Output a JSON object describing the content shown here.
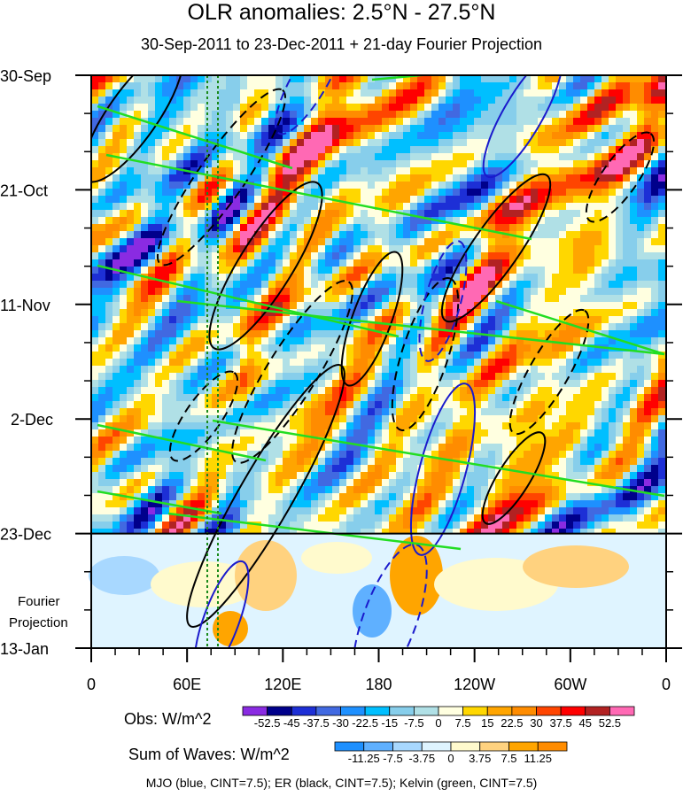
{
  "chart_data": {
    "type": "heatmap",
    "title": "OLR anomalies: 2.5°N - 27.5°N",
    "subtitle": "30-Sep-2011 to 23-Dec-2011 + 21-day Fourier Projection",
    "x_ticks": [
      "0",
      "60E",
      "120E",
      "180",
      "120W",
      "60W",
      "0"
    ],
    "x_tick_values": [
      0,
      60,
      120,
      180,
      240,
      300,
      360
    ],
    "y_ticks": [
      "30-Sep",
      "21-Oct",
      "11-Nov",
      "2-Dec",
      "23-Dec",
      "13-Jan"
    ],
    "y_tick_days": [
      0,
      21,
      42,
      63,
      84,
      105
    ],
    "projection_label": [
      "Fourier",
      "Projection"
    ],
    "projection_start_day": 84,
    "obs_legend": {
      "label": "Obs: W/m^2",
      "levels": [
        "-52.5",
        "-45",
        "-37.5",
        "-30",
        "-22.5",
        "-15",
        "-7.5",
        "0",
        "7.5",
        "15",
        "22.5",
        "30",
        "37.5",
        "45",
        "52.5"
      ],
      "colors": [
        "#8a2be2",
        "#00008b",
        "#1d2fd6",
        "#4169e1",
        "#1e90ff",
        "#00bfff",
        "#87ceeb",
        "#b0e0e6",
        "#ffffe0",
        "#ffd700",
        "#ffa500",
        "#ff8c00",
        "#ff4500",
        "#ff0000",
        "#b22222",
        "#ff69b4"
      ]
    },
    "waves_legend": {
      "label": "Sum of Waves: W/m^2",
      "levels": [
        "-11.25",
        "-7.5",
        "-3.75",
        "0",
        "3.75",
        "7.5",
        "11.25"
      ],
      "colors": [
        "#1e90ff",
        "#5fb0ff",
        "#a8d8ff",
        "#dff4ff",
        "#fffacd",
        "#ffd27f",
        "#ffa500",
        "#ff8c00"
      ]
    },
    "contours": [
      {
        "name": "MJO",
        "color": "blue",
        "cint": 7.5
      },
      {
        "name": "ER",
        "color": "black",
        "cint": 7.5
      },
      {
        "name": "Kelvin",
        "color": "green",
        "cint": 7.5
      }
    ],
    "footer": "MJO (blue, CINT=7.5); ER (black, CINT=7.5); Kelvin (green, CINT=7.5)"
  },
  "colors": {
    "mjo": "#1a1acc",
    "er": "#000000",
    "kelvin": "#22dd22",
    "reference_line": "#1a8a1a"
  }
}
